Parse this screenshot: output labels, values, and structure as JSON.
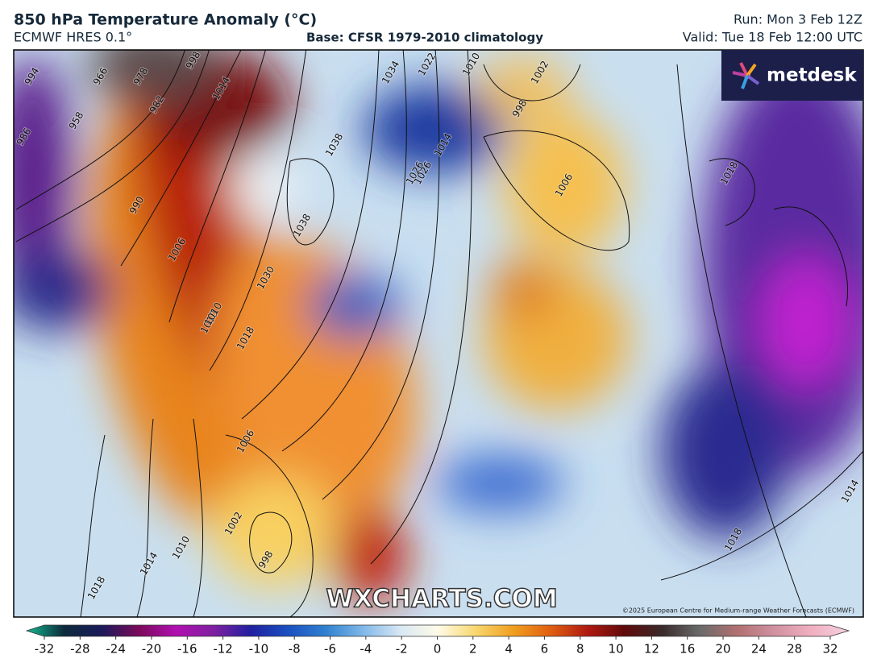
{
  "header": {
    "title": "850 hPa Temperature Anomaly (°C)",
    "model": "ECMWF HRES 0.1°",
    "base": "Base: CFSR 1979-2010 climatology",
    "run": "Run: Mon 3 Feb 12Z",
    "valid": "Valid: Tue 18 Feb 12:00 UTC"
  },
  "map": {
    "logo": "metdesk",
    "watermark": "WXCHARTS.COM",
    "copyright": "©2025 European Centre for Medium-range Weather Forecasts (ECMWF)",
    "isobar_labels": [
      994,
      986,
      958,
      966,
      978,
      982,
      998,
      1014,
      990,
      1006,
      1030,
      1010,
      1018,
      1038,
      1038,
      1034,
      1026,
      1022,
      1010,
      1002,
      998,
      1014,
      1026,
      1006,
      1018,
      1010,
      1006,
      1002,
      1010,
      1014,
      1018,
      998,
      1018,
      1014
    ]
  },
  "colorbar": {
    "ticks": [
      -32,
      -28,
      -24,
      -20,
      -16,
      -12,
      -10,
      -8,
      -6,
      -4,
      -2,
      0,
      2,
      4,
      6,
      8,
      10,
      12,
      16,
      20,
      24,
      28,
      32
    ]
  }
}
